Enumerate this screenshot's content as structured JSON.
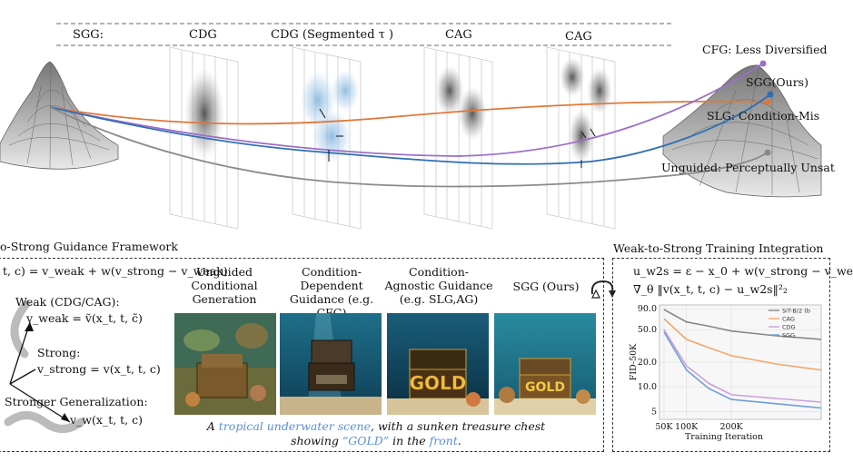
{
  "top": {
    "stage_labels": [
      "SGG:",
      "CDG",
      "CDG (Segmented τ )",
      "CAG",
      "CAG"
    ],
    "trajectory_labels": {
      "cfg": "CFG: Less Diversified",
      "sgg": "SGG(Ours)",
      "slg": "SLG: Condition-Mis",
      "unguided": "Unguided: Perceptually Unsat"
    },
    "colors": {
      "cfg": "#9b6fc8",
      "sgg": "#2f6fb3",
      "slg": "#e0783a",
      "unguided": "#8a8a8a"
    }
  },
  "framework": {
    "title": "o-Strong Guidance Framework",
    "eq_main": "t, c) = v_weak + w(v_strong − v_weak)",
    "weak_label": "Weak (CDG/CAG):",
    "weak_eq": "v_weak = ṽ(x_t, t, c̃)",
    "strong_label": "Strong:",
    "strong_eq": "v_strong = v(x_t, t, c)",
    "stronger_label": "Stronger Generalization:",
    "stronger_eq": "v_w(x_t, t, c)",
    "columns": [
      {
        "head": "Unguided Conditional Generation"
      },
      {
        "head": "Condition-Dependent Guidance (e.g. CFG)"
      },
      {
        "head": "Condition-Agnostic Guidance (e.g. SLG,AG)"
      },
      {
        "head": "SGG (Ours)"
      }
    ],
    "caption": {
      "p1": "A ",
      "h1": "tropical underwater scene",
      "p2": ", with a sunken treasure chest",
      "p3": "showing ",
      "h2": "“GOLD”",
      "p4": " in the ",
      "h3": "front",
      "p5": "."
    },
    "gold_text": "GOLD"
  },
  "training": {
    "title": "Weak-to-Strong Training Integration",
    "eq1": "u_w2s = ε − x_0 + w(v_strong − v_we",
    "eq2": "∇_θ ‖v(x_t, t, c) − u_w2s‖²₂"
  },
  "chart_data": {
    "type": "line",
    "ylabel": "FID-50K",
    "xlabel": "Training Iteration",
    "x_ticks": [
      "50K",
      "100K",
      "200K"
    ],
    "y_ticks": [
      "90.0",
      "50.0",
      "20.0",
      "10.0",
      "5"
    ],
    "log_y": true,
    "x": [
      50,
      100,
      150,
      200,
      300,
      400
    ],
    "series": [
      {
        "name": "SiT-B/2 (b",
        "color": "#888888",
        "values": [
          88,
          62,
          55,
          48,
          42,
          38
        ]
      },
      {
        "name": "CAG",
        "color": "#f2a76a",
        "values": [
          68,
          38,
          30,
          24,
          19,
          16
        ]
      },
      {
        "name": "CDG",
        "color": "#c9a0dc",
        "values": [
          50,
          18,
          11,
          8,
          7.2,
          6.5
        ]
      },
      {
        "name": "SGG",
        "color": "#6f9fd8",
        "values": [
          47,
          16,
          9.5,
          7,
          6.2,
          5.5
        ]
      }
    ]
  }
}
